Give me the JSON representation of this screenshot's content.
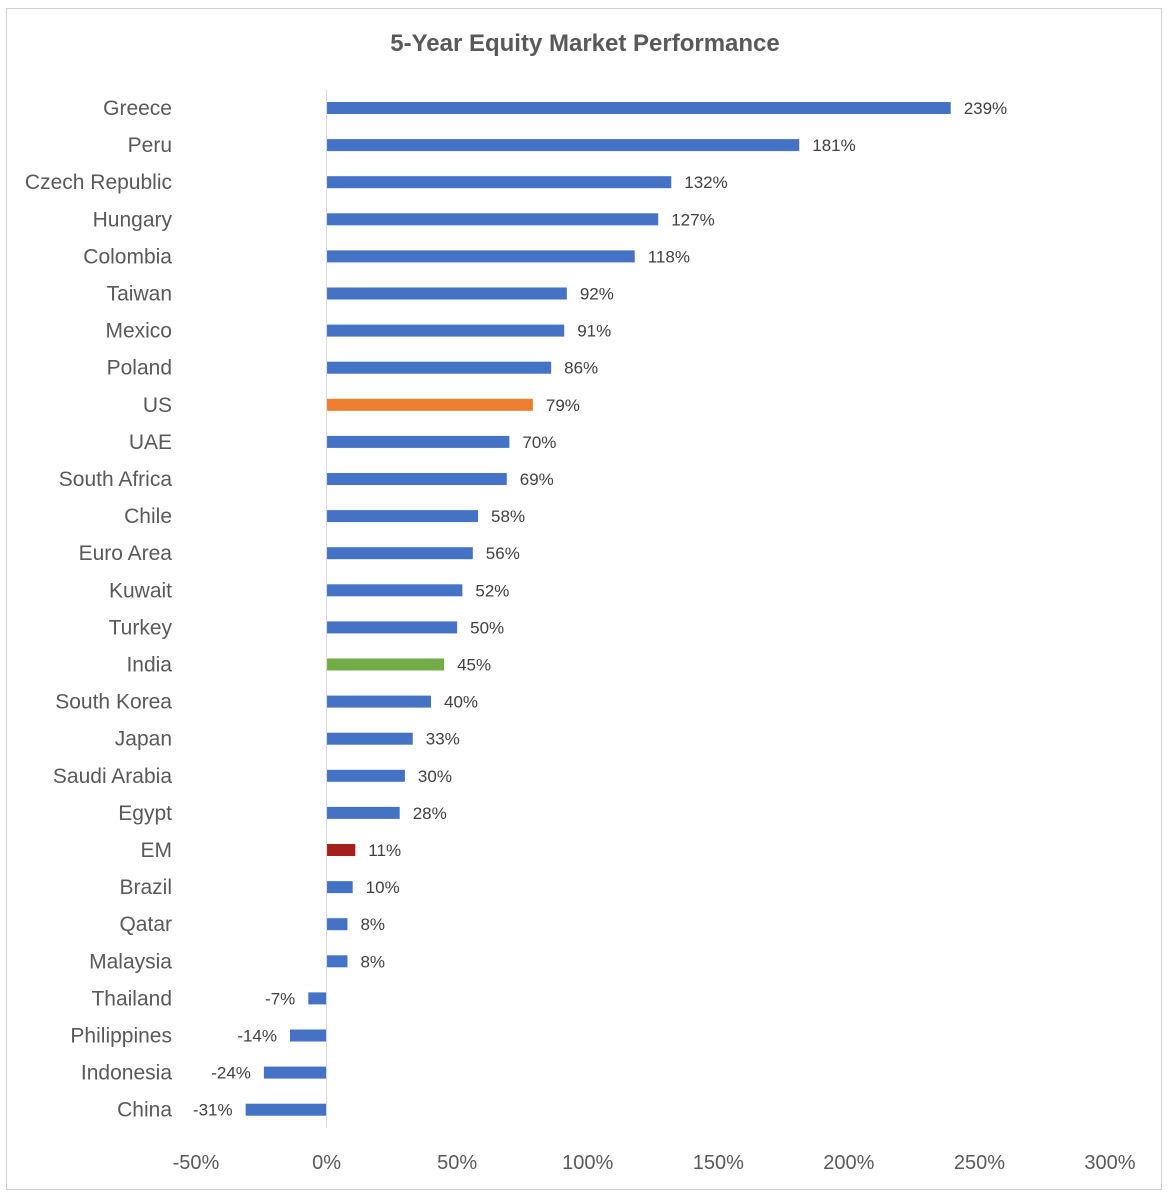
{
  "chart_data": {
    "type": "bar",
    "orientation": "horizontal",
    "title": "5-Year Equity Market Performance",
    "xlabel": "",
    "ylabel": "",
    "xlim": [
      -50,
      300
    ],
    "xticks": [
      -50,
      0,
      50,
      100,
      150,
      200,
      250,
      300
    ],
    "xtick_labels": [
      "-50%",
      "0%",
      "50%",
      "100%",
      "150%",
      "200%",
      "250%",
      "300%"
    ],
    "grid": false,
    "legend": "none",
    "default_color": "#4472C4",
    "categories": [
      "Greece",
      "Peru",
      "Czech Republic",
      "Hungary",
      "Colombia",
      "Taiwan",
      "Mexico",
      "Poland",
      "US",
      "UAE",
      "South Africa",
      "Chile",
      "Euro Area",
      "Kuwait",
      "Turkey",
      "India",
      "South Korea",
      "Japan",
      "Saudi Arabia",
      "Egypt",
      "EM",
      "Brazil",
      "Qatar",
      "Malaysia",
      "Thailand",
      "Philippines",
      "Indonesia",
      "China"
    ],
    "values": [
      239,
      181,
      132,
      127,
      118,
      92,
      91,
      86,
      79,
      70,
      69,
      58,
      56,
      52,
      50,
      45,
      40,
      33,
      30,
      28,
      11,
      10,
      8,
      8,
      -7,
      -14,
      -24,
      -31
    ],
    "value_labels": [
      "239%",
      "181%",
      "132%",
      "127%",
      "118%",
      "92%",
      "91%",
      "86%",
      "79%",
      "70%",
      "69%",
      "58%",
      "56%",
      "52%",
      "50%",
      "45%",
      "40%",
      "33%",
      "30%",
      "28%",
      "11%",
      "10%",
      "8%",
      "8%",
      "-7%",
      "-14%",
      "-24%",
      "-31%"
    ],
    "highlight_colors": {
      "US": "#ED7D31",
      "India": "#70AD47",
      "EM": "#A5201B"
    }
  }
}
